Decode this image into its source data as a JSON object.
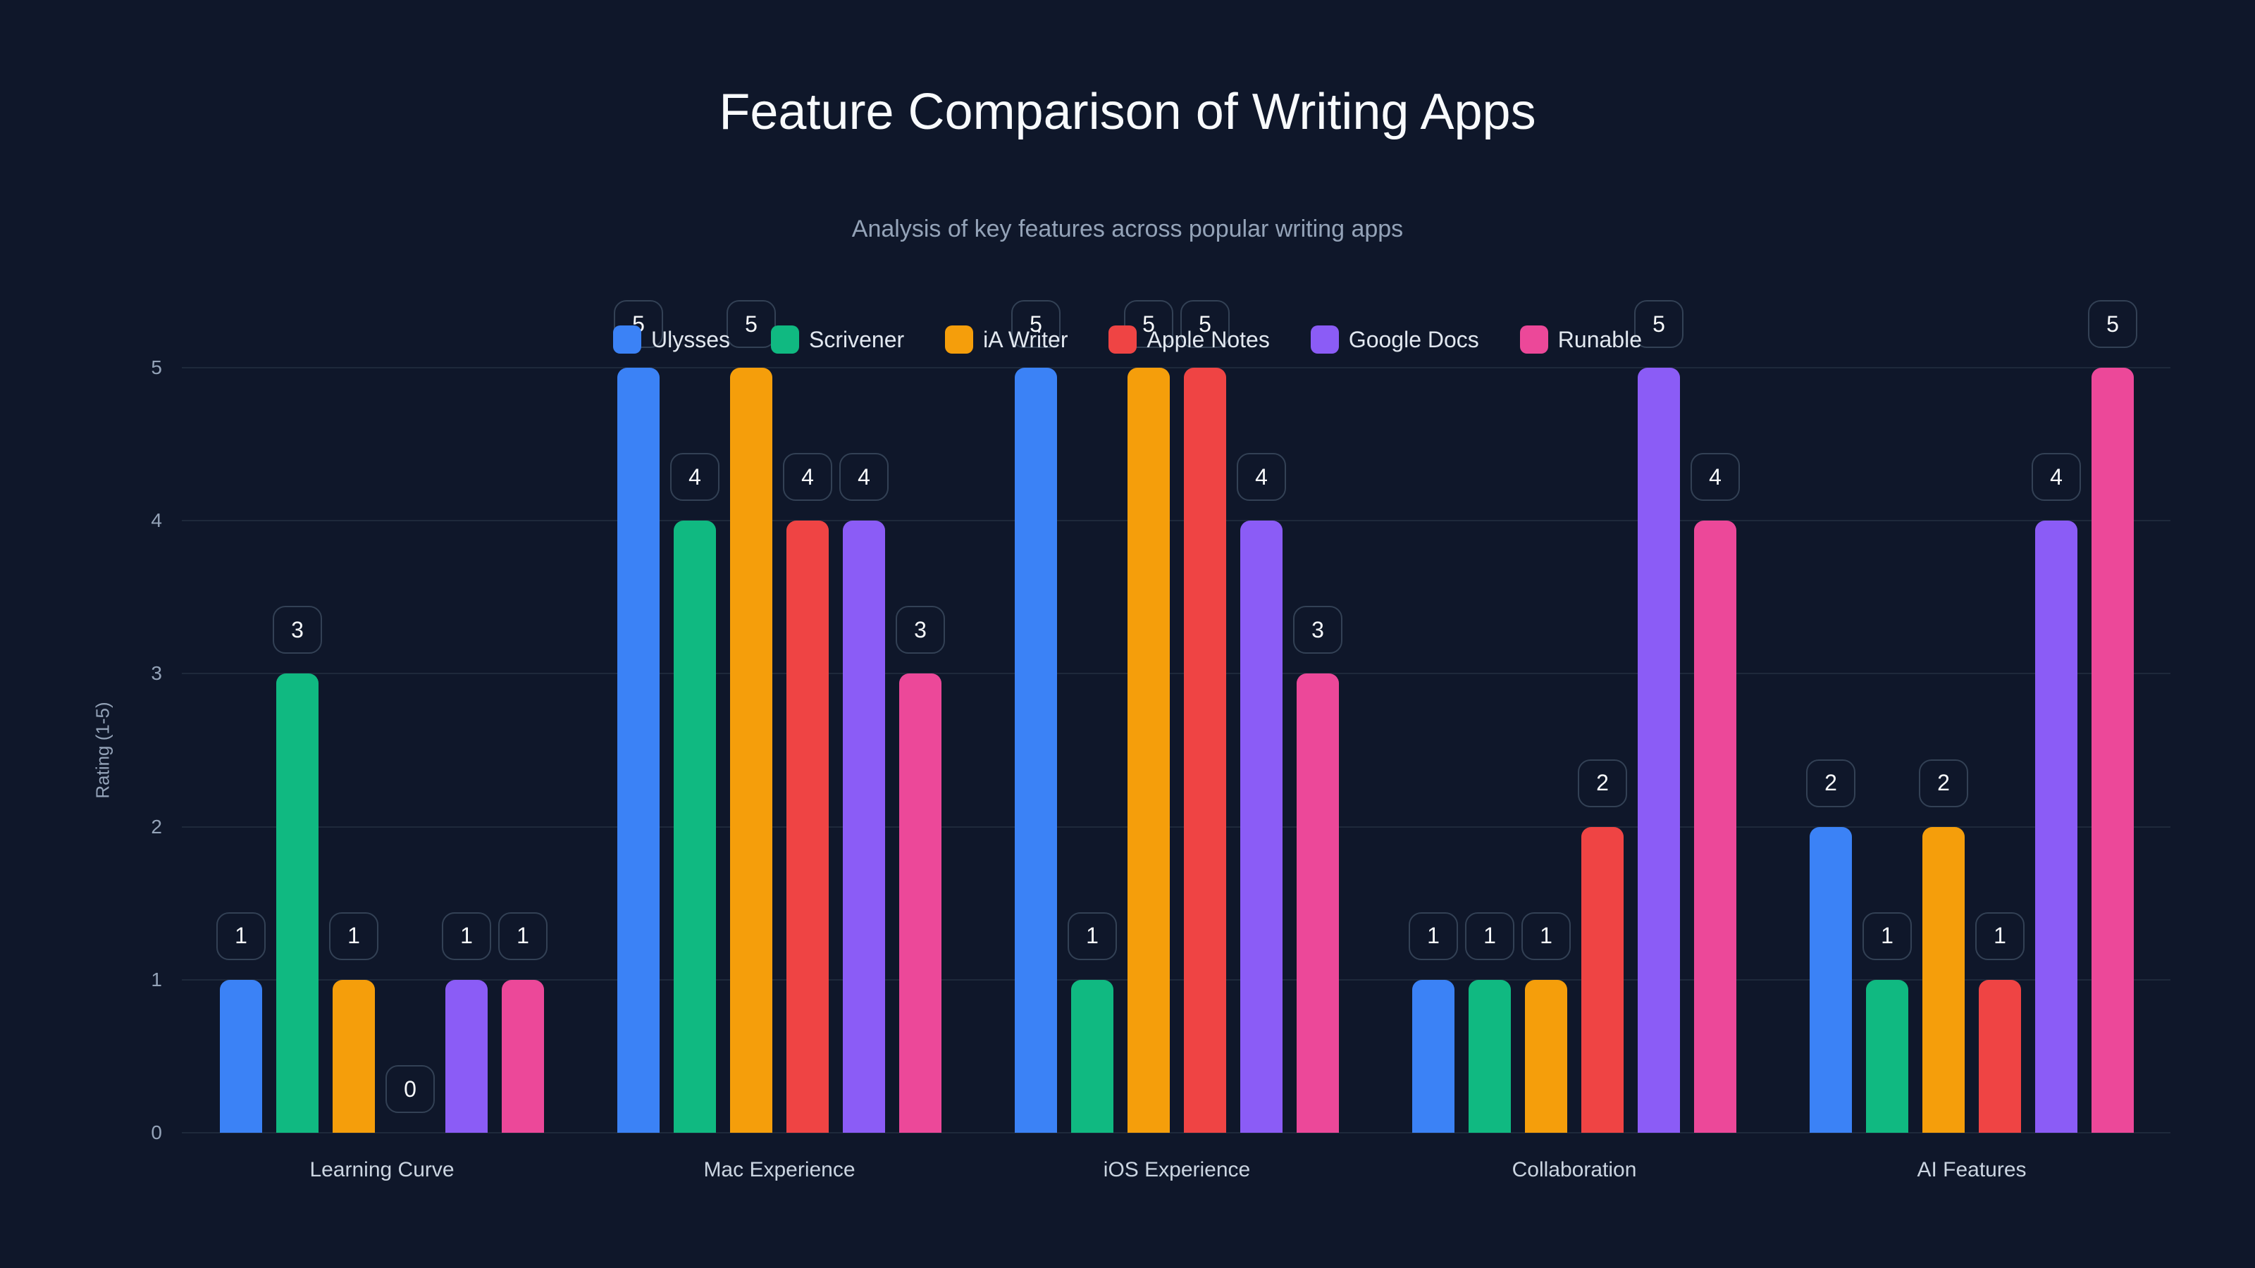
{
  "chart_data": {
    "type": "bar",
    "title": "Feature Comparison of Writing Apps",
    "subtitle": "Analysis of key features across popular writing apps",
    "xlabel": "",
    "ylabel": "Rating (1-5)",
    "ylim": [
      0,
      5
    ],
    "yticks": [
      "0",
      "1",
      "2",
      "3",
      "4",
      "5"
    ],
    "grid": true,
    "legend_position": "top",
    "categories": [
      "Learning Curve",
      "Mac Experience",
      "iOS Experience",
      "Collaboration",
      "AI Features"
    ],
    "series": [
      {
        "name": "Ulysses",
        "color": "#3b82f6",
        "values": [
          1,
          5,
          5,
          1,
          2
        ]
      },
      {
        "name": "Scrivener",
        "color": "#10b981",
        "values": [
          3,
          4,
          1,
          1,
          1
        ]
      },
      {
        "name": "iA Writer",
        "color": "#f59e0b",
        "values": [
          1,
          5,
          5,
          1,
          2
        ]
      },
      {
        "name": "Apple Notes",
        "color": "#ef4444",
        "values": [
          0,
          4,
          5,
          2,
          1
        ]
      },
      {
        "name": "Google Docs",
        "color": "#8b5cf6",
        "values": [
          1,
          4,
          4,
          5,
          4
        ]
      },
      {
        "name": "Runable",
        "color": "#ec4899",
        "values": [
          1,
          3,
          3,
          4,
          5
        ]
      }
    ]
  }
}
